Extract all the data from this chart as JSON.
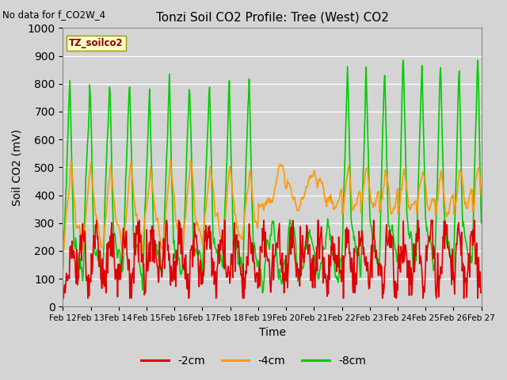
{
  "title": "Tonzi Soil CO2 Profile: Tree (West) CO2",
  "top_left_text": "No data for f_CO2W_4",
  "box_label": "TZ_soilco2",
  "xlabel": "Time",
  "ylabel": "Soil CO2 (mV)",
  "ylim": [
    0,
    1000
  ],
  "yticks": [
    0,
    100,
    200,
    300,
    400,
    500,
    600,
    700,
    800,
    900,
    1000
  ],
  "xtick_labels": [
    "Feb 12",
    "Feb 13",
    "Feb 14",
    "Feb 15",
    "Feb 16",
    "Feb 17",
    "Feb 18",
    "Feb 19",
    "Feb 20",
    "Feb 21",
    "Feb 22",
    "Feb 23",
    "Feb 24",
    "Feb 25",
    "Feb 26",
    "Feb 27"
  ],
  "series": {
    "neg2cm": {
      "label": "-2cm",
      "color": "#dd0000"
    },
    "neg4cm": {
      "label": "-4cm",
      "color": "#ff9900"
    },
    "neg8cm": {
      "label": "-8cm",
      "color": "#00cc00"
    }
  },
  "fig_facecolor": "#d4d4d4",
  "plot_facecolor": "#d4d4d4",
  "grid_color": "#ffffff",
  "line_width": 1.2,
  "n_days": 15,
  "pts_per_day": 48
}
